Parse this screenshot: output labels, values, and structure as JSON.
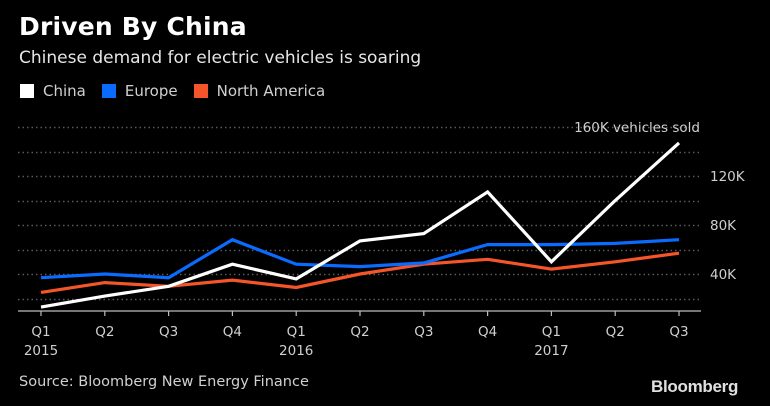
{
  "chart_data": {
    "type": "line",
    "title": "Driven By China",
    "subtitle": "Chinese demand for electric vehicles is soaring",
    "xlabel": "",
    "ylabel": "",
    "categories": [
      "Q1 2015",
      "Q2 2015",
      "Q3 2015",
      "Q4 2015",
      "Q1 2016",
      "Q2 2016",
      "Q3 2016",
      "Q4 2016",
      "Q1 2017",
      "Q2 2017",
      "Q3 2017"
    ],
    "x_tick_labels": [
      {
        "quarter": "Q1",
        "year": "2015"
      },
      {
        "quarter": "Q2",
        "year": ""
      },
      {
        "quarter": "Q3",
        "year": ""
      },
      {
        "quarter": "Q4",
        "year": ""
      },
      {
        "quarter": "Q1",
        "year": "2016"
      },
      {
        "quarter": "Q2",
        "year": ""
      },
      {
        "quarter": "Q3",
        "year": ""
      },
      {
        "quarter": "Q4",
        "year": ""
      },
      {
        "quarter": "Q1",
        "year": "2017"
      },
      {
        "quarter": "Q2",
        "year": ""
      },
      {
        "quarter": "Q3",
        "year": ""
      }
    ],
    "series": [
      {
        "name": "China",
        "color": "#ffffff",
        "values": [
          13000,
          22000,
          30000,
          48000,
          36000,
          67000,
          73000,
          107000,
          50000,
          100000,
          147000
        ]
      },
      {
        "name": "Europe",
        "color": "#0a6cff",
        "values": [
          37000,
          40000,
          37000,
          68000,
          48000,
          46000,
          49000,
          64000,
          64000,
          65000,
          68000
        ]
      },
      {
        "name": "North America",
        "color": "#f5552a",
        "values": [
          25000,
          33000,
          30000,
          35000,
          29000,
          40000,
          48000,
          52000,
          44000,
          50000,
          57000
        ]
      }
    ],
    "y_ticks": [
      {
        "value": 40000,
        "label": "40K"
      },
      {
        "value": 80000,
        "label": "80K"
      },
      {
        "value": 120000,
        "label": "120K"
      },
      {
        "value": 160000,
        "label": "160K vehicles sold"
      }
    ],
    "gridlines": [
      20000,
      40000,
      60000,
      80000,
      100000,
      120000,
      140000,
      160000
    ],
    "ylim": [
      10000,
      160000
    ],
    "grid": true,
    "grid_style": "dotted",
    "legend_position": "top-left"
  },
  "legend": [
    {
      "label": "China",
      "color": "#ffffff"
    },
    {
      "label": "Europe",
      "color": "#0a6cff"
    },
    {
      "label": "North America",
      "color": "#f5552a"
    }
  ],
  "footer": {
    "source": "Source: Bloomberg New Energy Finance",
    "brand": "Bloomberg"
  }
}
